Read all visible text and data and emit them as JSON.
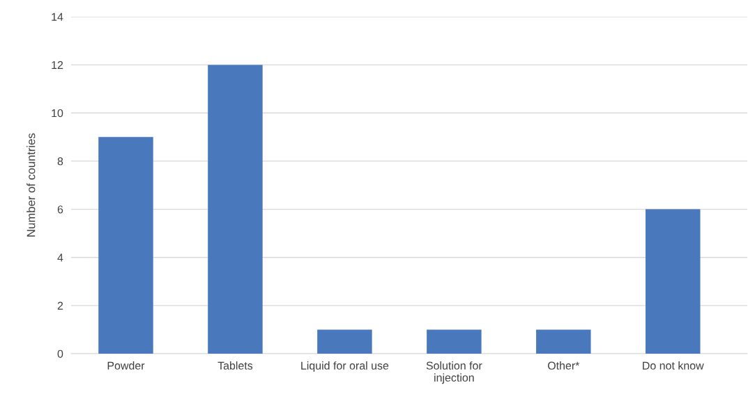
{
  "chart_data": {
    "type": "bar",
    "ylabel": "Number of countries",
    "categories": [
      "Powder",
      "Tablets",
      "Liquid for oral use",
      "Solution for\ninjection",
      "Other*",
      "Do not know"
    ],
    "values": [
      9,
      12,
      1,
      1,
      1,
      6
    ],
    "color": "#4a78bc",
    "ylim": [
      0,
      14
    ],
    "yticks": [
      0,
      2,
      4,
      6,
      8,
      10,
      12,
      14
    ],
    "grid": "y",
    "legend": false
  }
}
